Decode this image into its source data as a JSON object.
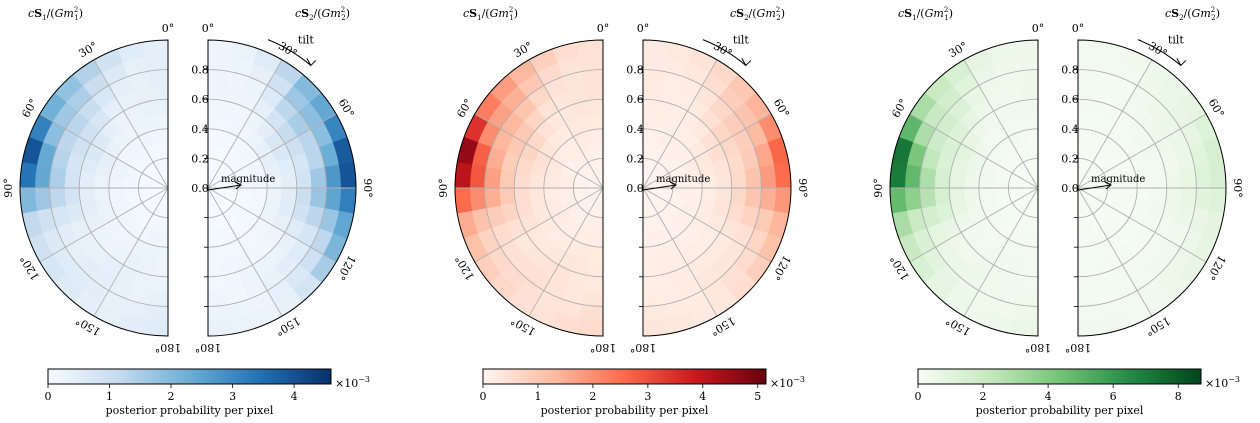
{
  "chart_data": [
    {
      "type": "heatmap",
      "cmap": "blues",
      "colors": [
        "#f7fbff",
        "#c6dbef",
        "#6baed6",
        "#2171b5",
        "#08306b"
      ],
      "left_label": "cS1/(Gm1²)",
      "right_label": "cS2/(Gm2²)",
      "left_label_parts": {
        "pre": "c",
        "bold": "S",
        "sub": "1",
        "mid": "/(",
        "gm": "Gm",
        "gsub": "1",
        "gsup": "2",
        "post": ")"
      },
      "right_label_parts": {
        "pre": "c",
        "bold": "S",
        "sub": "2",
        "mid": "/(",
        "gm": "Gm",
        "gsub": "2",
        "gsup": "2",
        "post": ")"
      },
      "theta_ticks": [
        "0°",
        "30°",
        "60°",
        "90°",
        "120°",
        "150°",
        "180°"
      ],
      "theta_tick_values": [
        0,
        30,
        60,
        90,
        120,
        150,
        180
      ],
      "radial_ticks": [
        "0.0",
        "0.2",
        "0.4",
        "0.6",
        "0.8"
      ],
      "radial_tick_values": [
        0.0,
        0.2,
        0.4,
        0.6,
        0.8
      ],
      "rlim": [
        0,
        1
      ],
      "tilt_label": "tilt",
      "magnitude_label": "magnitude",
      "colorbar": {
        "ticks": [
          "0",
          "1",
          "2",
          "3",
          "4"
        ],
        "tick_values": [
          0,
          1,
          2,
          3,
          4
        ],
        "vmax": 4.6,
        "exponent": "×10−3",
        "exp_base": "×10",
        "exp_sup": "−3",
        "label": "posterior probability per pixel"
      },
      "left_peak": {
        "theta": 72,
        "value": 4.3
      },
      "right_peak": {
        "theta": 92,
        "value": 4.6
      },
      "right_peak2": {
        "theta": 55,
        "value": 2.6
      }
    },
    {
      "type": "heatmap",
      "cmap": "reds",
      "colors": [
        "#fff5f0",
        "#fcbba1",
        "#fb6a4a",
        "#cb181d",
        "#67000d"
      ],
      "left_label": "cS1/(Gm1²)",
      "right_label": "cS2/(Gm2²)",
      "left_label_parts": {
        "pre": "c",
        "bold": "S",
        "sub": "1",
        "mid": "/(",
        "gm": "Gm",
        "gsub": "1",
        "gsup": "2",
        "post": ")"
      },
      "right_label_parts": {
        "pre": "c",
        "bold": "S",
        "sub": "2",
        "mid": "/(",
        "gm": "Gm",
        "gsub": "2",
        "gsup": "2",
        "post": ")"
      },
      "theta_ticks": [
        "0°",
        "30°",
        "60°",
        "90°",
        "120°",
        "150°",
        "180°"
      ],
      "theta_tick_values": [
        0,
        30,
        60,
        90,
        120,
        150,
        180
      ],
      "radial_ticks": [
        "0.0",
        "0.2",
        "0.4",
        "0.6",
        "0.8"
      ],
      "radial_tick_values": [
        0.0,
        0.2,
        0.4,
        0.6,
        0.8
      ],
      "rlim": [
        0,
        1
      ],
      "tilt_label": "tilt",
      "magnitude_label": "magnitude",
      "colorbar": {
        "ticks": [
          "0",
          "1",
          "2",
          "3",
          "4",
          "5"
        ],
        "tick_values": [
          0,
          1,
          2,
          3,
          4,
          5
        ],
        "vmax": 5.15,
        "exponent": "×10−3",
        "exp_base": "×10",
        "exp_sup": "−3",
        "label": "posterior probability per pixel"
      },
      "left_peak": {
        "theta": 75,
        "value": 5.0
      },
      "right_peak": {
        "theta": 88,
        "value": 2.6
      },
      "right_peak2": {
        "theta": 60,
        "value": 1.2
      }
    },
    {
      "type": "heatmap",
      "cmap": "greens",
      "colors": [
        "#f7fcf5",
        "#c7e9c0",
        "#74c476",
        "#238b45",
        "#00441b"
      ],
      "left_label": "cS1/(Gm1²)",
      "right_label": "cS2/(Gm2²)",
      "left_label_parts": {
        "pre": "c",
        "bold": "S",
        "sub": "1",
        "mid": "/(",
        "gm": "Gm",
        "gsub": "1",
        "gsup": "2",
        "post": ")"
      },
      "right_label_parts": {
        "pre": "c",
        "bold": "S",
        "sub": "2",
        "mid": "/(",
        "gm": "Gm",
        "gsub": "2",
        "gsup": "2",
        "post": ")"
      },
      "theta_ticks": [
        "0°",
        "30°",
        "60°",
        "90°",
        "120°",
        "150°",
        "180°"
      ],
      "theta_tick_values": [
        0,
        30,
        60,
        90,
        120,
        150,
        180
      ],
      "radial_ticks": [
        "0.0",
        "0.2",
        "0.4",
        "0.6",
        "0.8"
      ],
      "radial_tick_values": [
        0.0,
        0.2,
        0.4,
        0.6,
        0.8
      ],
      "rlim": [
        0,
        1
      ],
      "tilt_label": "tilt",
      "magnitude_label": "magnitude",
      "colorbar": {
        "ticks": [
          "0",
          "2",
          "4",
          "6",
          "8"
        ],
        "tick_values": [
          0,
          2,
          4,
          6,
          8
        ],
        "vmax": 8.7,
        "exponent": "×10−3",
        "exp_base": "×10",
        "exp_sup": "−3",
        "label": "posterior probability per pixel"
      },
      "left_peak": {
        "theta": 80,
        "value": 8.5
      },
      "right_peak": {
        "theta": 90,
        "value": 1.4
      },
      "right_peak2": {
        "theta": 60,
        "value": 0.6
      }
    }
  ]
}
